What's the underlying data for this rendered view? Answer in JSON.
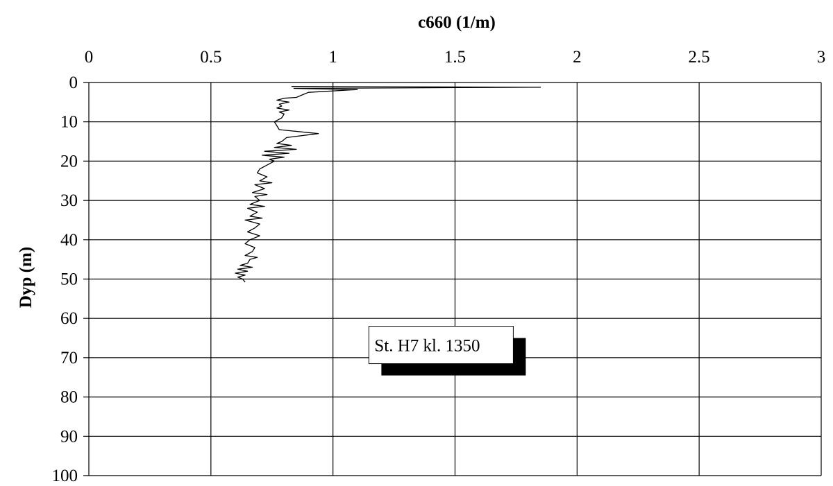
{
  "chart_data": {
    "type": "line",
    "xlabel": "c660 (1/m)",
    "ylabel": "Dyp (m)",
    "x_axis_position": "top",
    "y_axis_inverted": true,
    "xlim": [
      0,
      3
    ],
    "ylim": [
      0,
      100
    ],
    "x_ticks": [
      0,
      0.5,
      1,
      1.5,
      2,
      2.5,
      3
    ],
    "x_tick_labels": [
      "0",
      "0.5",
      "1",
      "1.5",
      "2",
      "2.5",
      "3"
    ],
    "y_ticks": [
      0,
      10,
      20,
      30,
      40,
      50,
      60,
      70,
      80,
      90,
      100
    ],
    "y_tick_labels": [
      "0",
      "10",
      "20",
      "30",
      "40",
      "50",
      "60",
      "70",
      "80",
      "90",
      "100"
    ],
    "grid": true,
    "line_color": "#000000",
    "annotation": {
      "text": "St. H7 kl. 1350",
      "x": 1.15,
      "y": 68
    },
    "series": [
      {
        "x": [
          0.83,
          1.85,
          0.84,
          1.1,
          0.9,
          0.88,
          0.85,
          0.8,
          0.77,
          0.82,
          0.78,
          0.79,
          0.77,
          0.82,
          0.78,
          0.8,
          0.79,
          0.76,
          0.77,
          0.78,
          0.94,
          0.81,
          0.79,
          0.77,
          0.83,
          0.76,
          0.85,
          0.72,
          0.82,
          0.71,
          0.8,
          0.74,
          0.76,
          0.73,
          0.7,
          0.69,
          0.73,
          0.7,
          0.75,
          0.68,
          0.72,
          0.67,
          0.73,
          0.68,
          0.7,
          0.66,
          0.72,
          0.65,
          0.69,
          0.66,
          0.71,
          0.64,
          0.7,
          0.68,
          0.65,
          0.7,
          0.66,
          0.64,
          0.68,
          0.67,
          0.64,
          0.69,
          0.66,
          0.65,
          0.62,
          0.67,
          0.61,
          0.65,
          0.6,
          0.64,
          0.61,
          0.63,
          0.64
        ],
        "y": [
          1.0,
          1.2,
          1.5,
          1.8,
          2.5,
          3.0,
          3.8,
          4.0,
          4.5,
          5.0,
          5.5,
          6.0,
          6.5,
          7.0,
          7.5,
          8.0,
          9.0,
          10.0,
          11.0,
          12.0,
          13.0,
          14.0,
          15.0,
          15.5,
          16.0,
          16.5,
          17.0,
          17.5,
          18.0,
          18.5,
          19.0,
          19.5,
          20.0,
          21.0,
          22.0,
          23.0,
          24.0,
          25.0,
          25.5,
          26.0,
          27.0,
          28.0,
          28.5,
          29.0,
          30.0,
          31.0,
          31.5,
          32.0,
          33.0,
          34.0,
          34.5,
          35.0,
          36.0,
          37.0,
          38.0,
          39.0,
          40.0,
          41.0,
          42.0,
          43.0,
          44.0,
          44.5,
          45.0,
          46.0,
          46.5,
          47.0,
          47.5,
          48.0,
          48.5,
          49.0,
          49.5,
          50.0,
          50.8
        ]
      }
    ]
  }
}
